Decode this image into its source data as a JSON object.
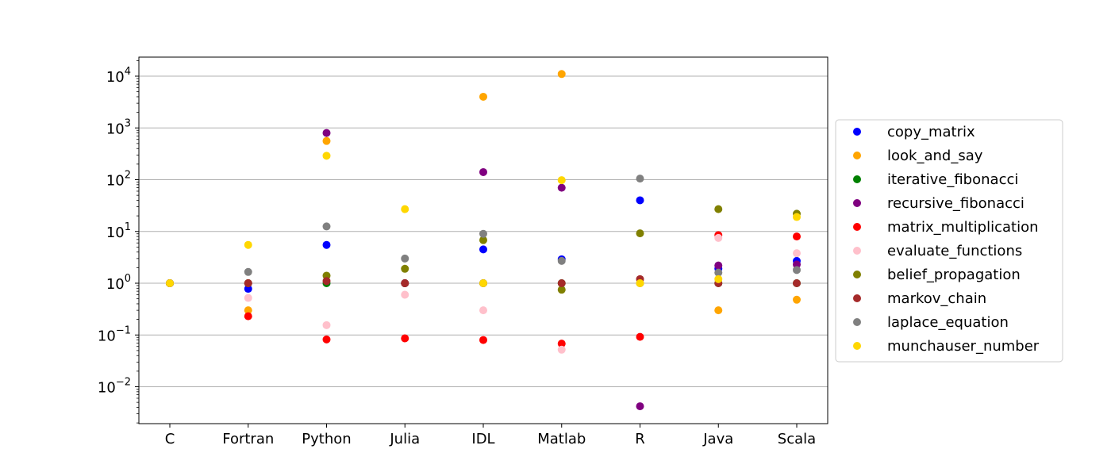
{
  "chart_data": {
    "type": "scatter",
    "title": "",
    "xlabel": "",
    "ylabel": "",
    "yscale": "log",
    "ylim": [
      0.002,
      20000
    ],
    "grid": "y-major",
    "legend_position": "center-right-outside",
    "categories": [
      "C",
      "Fortran",
      "Python",
      "Julia",
      "IDL",
      "Matlab",
      "R",
      "Java",
      "Scala"
    ],
    "yticks": [
      {
        "value": 0.01,
        "base": "10",
        "exp": "−2"
      },
      {
        "value": 0.1,
        "base": "10",
        "exp": "−1"
      },
      {
        "value": 1,
        "base": "10",
        "exp": "0"
      },
      {
        "value": 10,
        "base": "10",
        "exp": "1"
      },
      {
        "value": 100,
        "base": "10",
        "exp": "2"
      },
      {
        "value": 1000,
        "base": "10",
        "exp": "3"
      },
      {
        "value": 10000,
        "base": "10",
        "exp": "4"
      }
    ],
    "series": [
      {
        "name": "copy_matrix",
        "color": "#0000ff",
        "values": [
          1,
          0.78,
          5.5,
          1.0,
          4.5,
          2.9,
          40,
          1.9,
          2.7
        ]
      },
      {
        "name": "look_and_say",
        "color": "#ffa500",
        "values": [
          1,
          0.3,
          560,
          1.0,
          4000,
          11000,
          1.0,
          0.3,
          0.48
        ]
      },
      {
        "name": "iterative_fibonacci",
        "color": "#008000",
        "values": [
          1,
          1.0,
          1.0,
          1.0,
          1.0,
          1.0,
          1.0,
          1.0,
          1.0
        ]
      },
      {
        "name": "recursive_fibonacci",
        "color": "#800080",
        "values": [
          1,
          1.0,
          800,
          1.0,
          140,
          70,
          0.0042,
          2.2,
          2.3
        ]
      },
      {
        "name": "matrix_multiplication",
        "color": "#ff0000",
        "values": [
          1,
          0.23,
          0.082,
          0.086,
          0.08,
          0.068,
          0.092,
          8.5,
          8.0
        ]
      },
      {
        "name": "evaluate_functions",
        "color": "#ffc0cb",
        "values": [
          1,
          0.52,
          0.155,
          0.6,
          0.3,
          0.052,
          1.0,
          7.5,
          3.8
        ]
      },
      {
        "name": "belief_propagation",
        "color": "#808000",
        "values": [
          1,
          1.0,
          1.4,
          1.9,
          6.8,
          0.75,
          9.2,
          27,
          22
        ]
      },
      {
        "name": "markov_chain",
        "color": "#a52a2a",
        "values": [
          1,
          1.0,
          1.1,
          1.0,
          1.0,
          1.0,
          1.2,
          1.0,
          1.0
        ]
      },
      {
        "name": "laplace_equation",
        "color": "#808080",
        "values": [
          1,
          1.65,
          12.5,
          3.0,
          9.0,
          2.7,
          105,
          1.6,
          1.8
        ]
      },
      {
        "name": "munchauser_number",
        "color": "#ffd700",
        "values": [
          1,
          5.5,
          290,
          27,
          1.0,
          98,
          1.0,
          1.2,
          19
        ]
      }
    ]
  }
}
